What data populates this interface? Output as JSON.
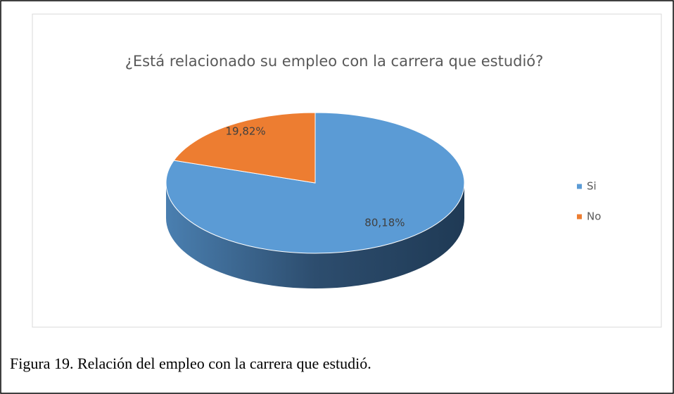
{
  "chart_data": {
    "type": "pie",
    "title": "¿Está relacionado su empleo con la carrera que estudió?",
    "categories": [
      "Si",
      "No"
    ],
    "values": [
      80.18,
      19.82
    ],
    "value_labels": [
      "80,18%",
      "19,82%"
    ],
    "colors": [
      "#5b9bd5",
      "#ed7d31"
    ],
    "legend": "right"
  },
  "caption": "Figura 19. Relación del empleo con la carrera que estudió."
}
